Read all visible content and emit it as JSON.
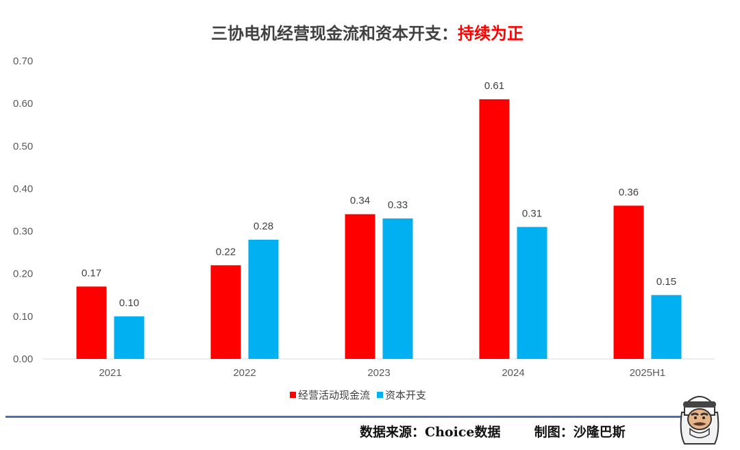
{
  "chart_data": {
    "type": "bar",
    "title": "三协电机经营现金流和资本开支：",
    "title_highlight": "持续为正",
    "title_color": "#404040",
    "highlight_color": "#ff0000",
    "categories": [
      "2021",
      "2022",
      "2023",
      "2024",
      "2025H1"
    ],
    "series": [
      {
        "name": "经营活动现金流",
        "color": "#ff0000",
        "values": [
          0.17,
          0.22,
          0.34,
          0.61,
          0.36
        ]
      },
      {
        "name": "资本开支",
        "color": "#00b0f0",
        "values": [
          0.1,
          0.28,
          0.33,
          0.31,
          0.15
        ]
      }
    ],
    "ylim": [
      0,
      0.7
    ],
    "yticks": [
      "0.00",
      "0.10",
      "0.20",
      "0.30",
      "0.40",
      "0.50",
      "0.60",
      "0.70"
    ],
    "grid": false,
    "legend_position": "bottom"
  },
  "footer": {
    "source": "数据来源：Choice数据",
    "author": "制图：沙隆巴斯"
  }
}
